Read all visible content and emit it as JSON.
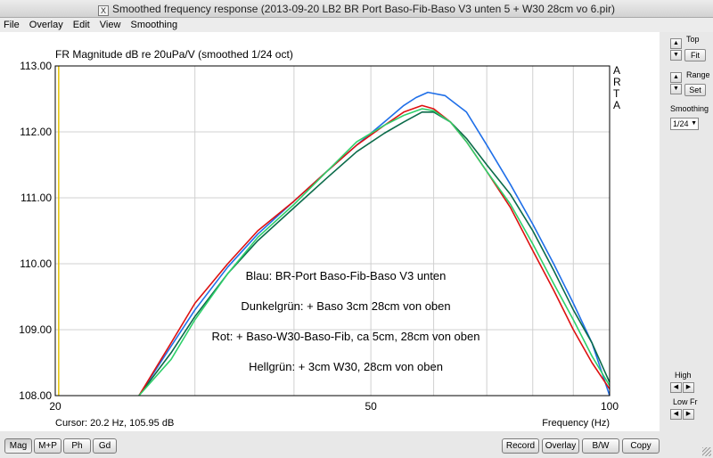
{
  "window": {
    "title": "Smoothed frequency response (2013-09-20 LB2 BR Port Baso-Fib-Baso V3 unten 5 + W30 28cm vo 6.pir)",
    "app_icon": "X"
  },
  "menu": [
    "File",
    "Overlay",
    "Edit",
    "View",
    "Smoothing"
  ],
  "side_text": [
    "A",
    "R",
    "T",
    "A"
  ],
  "cursor": "Cursor: 20.2 Hz, 105.95 dB",
  "controls": {
    "top_label": "Top",
    "fit_label": "Fit",
    "range_label": "Range",
    "set_label": "Set",
    "smoothing_label": "Smoothing",
    "smoothing_value": "1/24",
    "high_label": "High",
    "lowfr_label": "Low Fr"
  },
  "bottom_buttons_left": [
    "Mag",
    "M+P",
    "Ph",
    "Gd"
  ],
  "bottom_buttons_right": [
    "Record",
    "Overlay",
    "B/W",
    "Copy"
  ],
  "chart_data": {
    "type": "line",
    "title": "FR Magnitude dB re 20uPa/V (smoothed 1/24 oct)",
    "xlabel": "Frequency (Hz)",
    "ylabel": "",
    "xscale": "log",
    "xlim": [
      20,
      100
    ],
    "ylim": [
      108,
      113
    ],
    "x_ticks": [
      "20",
      "50",
      "100"
    ],
    "y_ticks": [
      "113.00",
      "112.00",
      "111.00",
      "110.00",
      "109.00",
      "108.00"
    ],
    "grid": true,
    "annotations": [
      "Blau: BR-Port Baso-Fib-Baso V3 unten",
      "Dunkelgrün: + Baso 3cm 28cm von oben",
      "Rot: + Baso-W30-Baso-Fib, ca 5cm, 28cm von oben",
      "Hellgrün: + 3cm W30, 28cm von oben"
    ],
    "colors": {
      "blue": "#1f6fe8",
      "darkgreen": "#0b6b4a",
      "red": "#dd1111",
      "lightgreen": "#2fd06a",
      "cursor": "#e6c200"
    },
    "series": [
      {
        "color": "blue",
        "x": [
          25.5,
          28,
          30,
          33,
          36,
          40,
          44,
          48,
          52,
          55,
          57,
          59,
          62,
          66,
          70,
          75,
          80,
          85,
          90,
          95,
          100
        ],
        "y": [
          108.0,
          108.75,
          109.3,
          109.95,
          110.45,
          110.95,
          111.4,
          111.8,
          112.15,
          112.4,
          112.52,
          112.6,
          112.55,
          112.3,
          111.8,
          111.2,
          110.6,
          110.0,
          109.4,
          108.8,
          108.0
        ]
      },
      {
        "color": "darkgreen",
        "x": [
          25.5,
          28,
          30,
          33,
          36,
          40,
          44,
          48,
          52,
          55,
          58,
          60,
          63,
          66,
          70,
          75,
          80,
          85,
          90,
          95,
          100
        ],
        "y": [
          108.0,
          108.65,
          109.2,
          109.85,
          110.35,
          110.85,
          111.3,
          111.7,
          111.98,
          112.15,
          112.3,
          112.3,
          112.15,
          111.9,
          111.5,
          111.05,
          110.5,
          109.9,
          109.3,
          108.8,
          108.2
        ]
      },
      {
        "color": "red",
        "x": [
          25.5,
          28,
          30,
          33,
          36,
          40,
          44,
          48,
          52,
          55,
          58,
          60,
          63,
          66,
          70,
          75,
          80,
          85,
          90,
          95,
          100
        ],
        "y": [
          108.0,
          108.8,
          109.4,
          110.0,
          110.5,
          110.95,
          111.4,
          111.8,
          112.1,
          112.3,
          112.4,
          112.35,
          112.15,
          111.85,
          111.4,
          110.85,
          110.2,
          109.6,
          109.0,
          108.5,
          108.1
        ]
      },
      {
        "color": "lightgreen",
        "x": [
          25.5,
          28,
          30,
          33,
          36,
          40,
          44,
          48,
          52,
          55,
          58,
          60,
          63,
          66,
          70,
          75,
          80,
          85,
          90,
          95,
          100
        ],
        "y": [
          108.0,
          108.55,
          109.15,
          109.85,
          110.4,
          110.9,
          111.4,
          111.85,
          112.1,
          112.25,
          112.35,
          112.32,
          112.15,
          111.85,
          111.4,
          110.9,
          110.3,
          109.7,
          109.15,
          108.6,
          108.15
        ]
      }
    ]
  }
}
